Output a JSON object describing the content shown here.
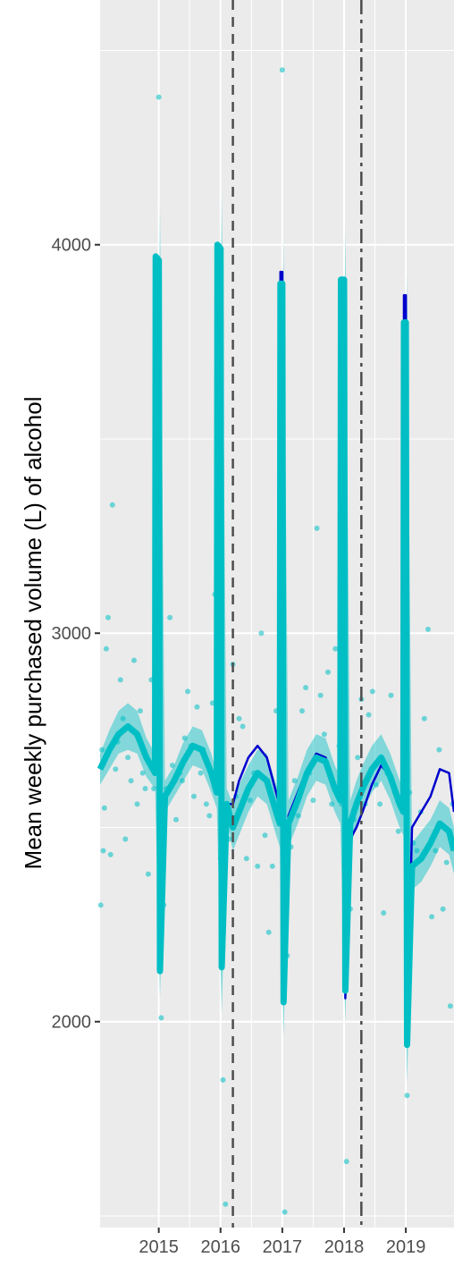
{
  "chart_data": {
    "type": "line",
    "title": "",
    "xlabel": "",
    "ylabel": "Mean weekly purchased volume (L) of alcohol",
    "xlim": [
      2014.05,
      2019.78
    ],
    "ylim": [
      1470,
      4630
    ],
    "x_ticks": [
      {
        "value": 2015,
        "label": "2015"
      },
      {
        "value": 2016,
        "label": "2016"
      },
      {
        "value": 2017,
        "label": "2017"
      },
      {
        "value": 2018,
        "label": "2018"
      },
      {
        "value": 2019,
        "label": "2019"
      }
    ],
    "y_ticks": [
      {
        "value": 2000,
        "label": "2000"
      },
      {
        "value": 3000,
        "label": "3000"
      },
      {
        "value": 4000,
        "label": "4000"
      }
    ],
    "y_minor_gridlines": [
      1500,
      2500,
      3500,
      4500
    ],
    "grid": true,
    "background": "#ebebeb",
    "vertical_lines": [
      {
        "x": 2016.2,
        "style": "dashed"
      },
      {
        "x": 2018.28,
        "style": "dashdot"
      }
    ],
    "series": [
      {
        "role": "counterfactual",
        "color": "#0000cd",
        "x": [
          2014.05,
          2014.2,
          2014.35,
          2014.5,
          2014.65,
          2014.8,
          2014.94,
          2014.95,
          2015.0,
          2015.02,
          2015.1,
          2015.25,
          2015.4,
          2015.55,
          2015.7,
          2015.85,
          2015.94,
          2015.95,
          2016.0,
          2016.02,
          2016.1,
          2016.2,
          2016.3,
          2016.45,
          2016.6,
          2016.75,
          2016.9,
          2016.96,
          2016.97,
          2017.0,
          2017.02,
          2017.1,
          2017.25,
          2017.4,
          2017.55,
          2017.7,
          2017.85,
          2017.94,
          2017.95,
          2018.0,
          2018.02,
          2018.1,
          2018.2,
          2018.3,
          2018.45,
          2018.6,
          2018.75,
          2018.9,
          2018.96,
          2018.97,
          2019.0,
          2019.02,
          2019.1,
          2019.25,
          2019.4,
          2019.55,
          2019.7,
          2019.78
        ],
        "y": [
          2650,
          2700,
          2740,
          2760,
          2740,
          2680,
          2640,
          3970,
          3960,
          2130,
          2580,
          2620,
          2670,
          2710,
          2700,
          2640,
          2590,
          4000,
          3990,
          2140,
          2560,
          2560,
          2620,
          2680,
          2710,
          2680,
          2590,
          2550,
          3930,
          3930,
          2070,
          2530,
          2590,
          2650,
          2690,
          2680,
          2610,
          2580,
          3900,
          3900,
          2060,
          2470,
          2500,
          2540,
          2610,
          2660,
          2630,
          2560,
          2560,
          3870,
          3870,
          1960,
          2500,
          2540,
          2580,
          2650,
          2640,
          2540
        ]
      },
      {
        "role": "fitted",
        "color": "#00bfc4",
        "x": [
          2014.05,
          2014.2,
          2014.35,
          2014.5,
          2014.65,
          2014.8,
          2014.94,
          2014.95,
          2015.0,
          2015.02,
          2015.1,
          2015.25,
          2015.4,
          2015.55,
          2015.7,
          2015.85,
          2015.94,
          2015.95,
          2016.0,
          2016.02,
          2016.1,
          2016.2,
          2016.3,
          2016.45,
          2016.6,
          2016.75,
          2016.9,
          2016.96,
          2016.97,
          2017.0,
          2017.02,
          2017.1,
          2017.25,
          2017.4,
          2017.55,
          2017.7,
          2017.85,
          2017.94,
          2017.95,
          2018.0,
          2018.02,
          2018.1,
          2018.2,
          2018.3,
          2018.45,
          2018.6,
          2018.75,
          2018.9,
          2018.96,
          2018.97,
          2019.0,
          2019.02,
          2019.1,
          2019.25,
          2019.4,
          2019.55,
          2019.7,
          2019.78
        ],
        "y": [
          2650,
          2700,
          2740,
          2760,
          2740,
          2680,
          2640,
          3970,
          3960,
          2130,
          2580,
          2620,
          2670,
          2710,
          2700,
          2640,
          2590,
          4000,
          3990,
          2140,
          2560,
          2500,
          2540,
          2600,
          2640,
          2620,
          2540,
          2510,
          3900,
          3900,
          2050,
          2510,
          2570,
          2640,
          2680,
          2670,
          2600,
          2570,
          3910,
          3910,
          2080,
          2510,
          2560,
          2600,
          2650,
          2680,
          2630,
          2560,
          2540,
          3800,
          3800,
          1940,
          2400,
          2420,
          2460,
          2510,
          2490,
          2440
        ]
      }
    ],
    "ribbon": {
      "color": "#00bfc4",
      "x": [
        2014.05,
        2014.2,
        2014.35,
        2014.5,
        2014.65,
        2014.8,
        2014.94,
        2015.02,
        2015.1,
        2015.25,
        2015.4,
        2015.55,
        2015.7,
        2015.85,
        2015.94,
        2016.02,
        2016.1,
        2016.2,
        2016.3,
        2016.45,
        2016.6,
        2016.75,
        2016.9,
        2016.96,
        2017.02,
        2017.1,
        2017.25,
        2017.4,
        2017.55,
        2017.7,
        2017.85,
        2017.94,
        2018.02,
        2018.1,
        2018.2,
        2018.3,
        2018.45,
        2018.6,
        2018.75,
        2018.9,
        2018.96,
        2019.02,
        2019.1,
        2019.25,
        2019.4,
        2019.55,
        2019.7,
        2019.78
      ],
      "low": [
        2610,
        2650,
        2690,
        2700,
        2690,
        2630,
        2600,
        2060,
        2540,
        2580,
        2620,
        2660,
        2650,
        2590,
        2550,
        2020,
        2520,
        2440,
        2480,
        2540,
        2580,
        2560,
        2480,
        2450,
        1960,
        2450,
        2510,
        2580,
        2620,
        2610,
        2540,
        2510,
        2000,
        2450,
        2500,
        2540,
        2590,
        2620,
        2570,
        2500,
        2480,
        1840,
        2340,
        2360,
        2400,
        2450,
        2430,
        2380
      ],
      "high": [
        2690,
        2750,
        2800,
        2820,
        2800,
        2730,
        2690,
        4100,
        2620,
        2660,
        2720,
        2760,
        2750,
        2690,
        2640,
        4140,
        2600,
        2560,
        2610,
        2660,
        2700,
        2690,
        2610,
        2570,
        4020,
        2570,
        2630,
        2700,
        2740,
        2730,
        2660,
        2630,
        4040,
        2570,
        2620,
        2660,
        2710,
        2740,
        2690,
        2620,
        2600,
        3930,
        2460,
        2490,
        2520,
        2570,
        2550,
        2500
      ]
    },
    "points": {
      "color": "#00bfc4",
      "x": [
        2014.06,
        2014.08,
        2014.1,
        2014.12,
        2014.15,
        2014.18,
        2014.22,
        2014.25,
        2014.3,
        2014.33,
        2014.38,
        2014.42,
        2014.46,
        2014.5,
        2014.55,
        2014.6,
        2014.65,
        2014.7,
        2014.74,
        2014.78,
        2014.83,
        2014.88,
        2014.92,
        2014.96,
        2015.0,
        2015.04,
        2015.08,
        2015.12,
        2015.18,
        2015.22,
        2015.28,
        2015.34,
        2015.38,
        2015.42,
        2015.47,
        2015.52,
        2015.57,
        2015.62,
        2015.68,
        2015.72,
        2015.77,
        2015.82,
        2015.87,
        2015.91,
        2015.96,
        2016.0,
        2016.04,
        2016.08,
        2016.14,
        2016.2,
        2016.25,
        2016.3,
        2016.36,
        2016.42,
        2016.48,
        2016.54,
        2016.6,
        2016.66,
        2016.72,
        2016.78,
        2016.84,
        2016.9,
        2016.96,
        2017.0,
        2017.04,
        2017.08,
        2017.14,
        2017.2,
        2017.26,
        2017.32,
        2017.38,
        2017.44,
        2017.5,
        2017.56,
        2017.62,
        2017.68,
        2017.74,
        2017.8,
        2017.86,
        2017.92,
        2017.96,
        2018.0,
        2018.04,
        2018.1,
        2018.16,
        2018.22,
        2018.28,
        2018.34,
        2018.4,
        2018.46,
        2018.52,
        2018.58,
        2018.64,
        2018.7,
        2018.76,
        2018.82,
        2018.88,
        2018.94,
        2018.98,
        2019.02,
        2019.06,
        2019.12,
        2019.18,
        2019.24,
        2019.3,
        2019.36,
        2019.42,
        2019.48,
        2019.54,
        2019.6,
        2019.66,
        2019.72,
        2019.76
      ],
      "y": [
        2300,
        2700,
        2440,
        2550,
        2960,
        3040,
        2430,
        3330,
        2650,
        2720,
        2880,
        2780,
        2470,
        2680,
        2620,
        2930,
        2560,
        2800,
        2640,
        2600,
        2380,
        2880,
        2600,
        3420,
        4380,
        2010,
        2300,
        2600,
        3040,
        2660,
        2520,
        2640,
        2620,
        2730,
        2850,
        2710,
        2580,
        2810,
        2640,
        2700,
        2560,
        2530,
        2820,
        3100,
        3450,
        2420,
        1850,
        1530,
        2470,
        2920,
        2580,
        2780,
        2760,
        2420,
        2570,
        2640,
        2400,
        3000,
        2480,
        2230,
        2400,
        2800,
        2540,
        4450,
        1510,
        2170,
        2450,
        2620,
        2530,
        2800,
        2860,
        2640,
        2570,
        3270,
        2840,
        2740,
        2900,
        2560,
        2960,
        2710,
        2560,
        3220,
        1640,
        2290,
        2520,
        2680,
        2830,
        2560,
        2790,
        2850,
        2610,
        2560,
        2280,
        2640,
        2840,
        2590,
        2490,
        2580,
        3380,
        1810,
        2590,
        2460,
        2440,
        2540,
        2780,
        3010,
        2270,
        2440,
        2700,
        2290,
        2410,
        2040,
        2560
      ]
    }
  }
}
